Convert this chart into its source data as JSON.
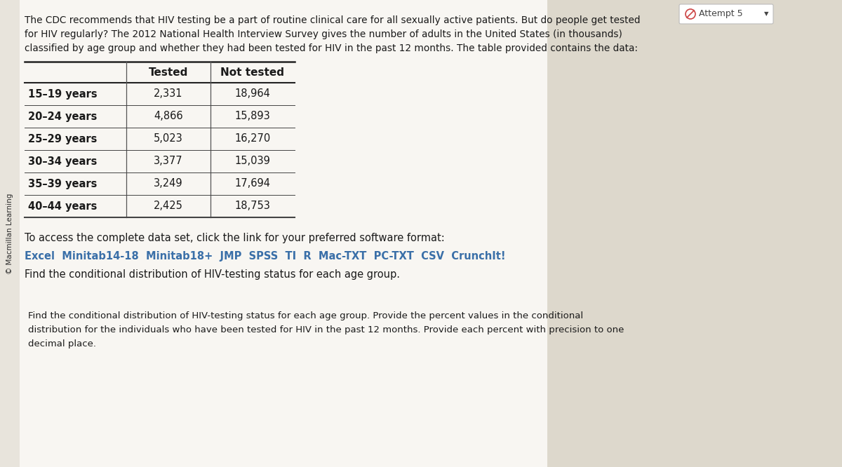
{
  "page_bg": "#ddd8cc",
  "content_bg": "#f0ede6",
  "white_bg": "#f8f6f2",
  "title_text_line1": "The CDC recommends that HIV testing be a part of routine clinical care for all sexually active patients. But do people get tested",
  "title_text_line2": "for HIV regularly? The 2012 National Health Interview Survey gives the number of adults in the United States (in thousands)",
  "title_text_line3": "classified by age group and whether they had been tested for HIV in the past 12 months. The table provided contains the data:",
  "sidebar_text": "© Macmillan Learning",
  "attempt_text": "Attempt 5",
  "age_groups": [
    "15–19 years",
    "20–24 years",
    "25–29 years",
    "30–34 years",
    "35–39 years",
    "40–44 years"
  ],
  "tested": [
    2331,
    4866,
    5023,
    3377,
    3249,
    2425
  ],
  "not_tested": [
    18964,
    15893,
    16270,
    15039,
    17694,
    18753
  ],
  "tested_label": "Tested",
  "not_tested_label": "Not tested",
  "access_text": "To access the complete data set, click the link for your preferred software format:",
  "links_text": "Excel  Minitab14-18  Minitab18+  JMP  SPSS  TI  R  Mac-TXT  PC-TXT  CSV  CrunchIt!",
  "find_text": "Find the conditional distribution of HIV-testing status for each age group.",
  "bottom_text": "Find the conditional distribution of HIV-testing status for each age group. Provide the percent values in the conditional\ndistribution for the individuals who have been tested for HIV in the past 12 months. Provide each percent with precision to one\ndecimal place.",
  "links_color": "#3a6fa8",
  "text_color": "#1a1a1a",
  "sidebar_color": "#2a2a2a",
  "attempt_color": "#444444",
  "attempt_icon_color": "#cc4444"
}
